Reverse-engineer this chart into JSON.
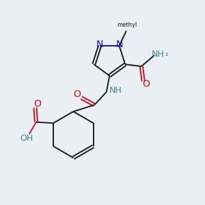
{
  "background_color": "#eaeff5",
  "bond_color": "#1a1a1a",
  "N_color": "#1010cc",
  "O_color": "#cc1111",
  "H_color": "#3a8a8a",
  "figsize": [
    3.0,
    3.0
  ],
  "dpi": 100,
  "xlim": [
    0,
    10
  ],
  "ylim": [
    0,
    10
  ],
  "bond_lw": 1.4,
  "font_size": 9
}
